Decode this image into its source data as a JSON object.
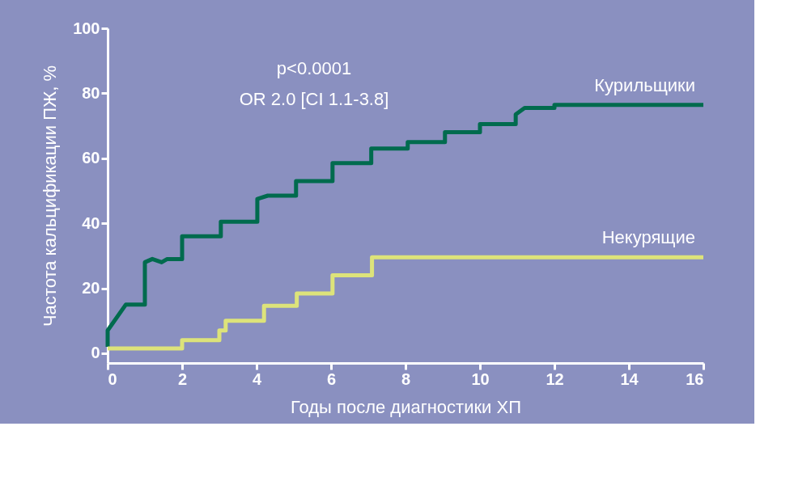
{
  "chart_data": {
    "type": "line",
    "xlabel": "Годы после диагностики ХП",
    "ylabel": "Частота кальцификации ПЖ, %",
    "annotations": [
      "p<0.0001",
      "OR 2.0 [CI 1.1-3.8]"
    ],
    "series": [
      {
        "name": "Курильщики",
        "color": "#006b4e",
        "x": [
          0,
          0,
          0.49,
          1.0,
          1.0,
          1.2,
          1.45,
          1.6,
          2.0,
          2.0,
          3.04,
          3.04,
          4.02,
          4.02,
          4.3,
          5.06,
          5.06,
          6.04,
          6.04,
          7.08,
          7.08,
          8.06,
          8.06,
          9.06,
          9.06,
          10.0,
          10.0,
          10.96,
          10.96,
          11.2,
          12.0,
          12.0,
          16
        ],
        "values": [
          2,
          7,
          15,
          15,
          28,
          29,
          28,
          29,
          29,
          36,
          36,
          40.5,
          40.5,
          47.5,
          48.5,
          48.5,
          53,
          53,
          58.5,
          58.5,
          63,
          63,
          65,
          65,
          68,
          68,
          70.5,
          70.5,
          73.5,
          75.5,
          75.5,
          76.4,
          76.4
        ]
      },
      {
        "name": "Некурящие",
        "color": "#dde37a",
        "x": [
          0,
          2.0,
          2.0,
          3.0,
          3.0,
          3.17,
          3.17,
          4.2,
          4.2,
          5.08,
          5.08,
          6.04,
          6.04,
          7.1,
          7.1,
          16
        ],
        "values": [
          1.5,
          1.5,
          4,
          4,
          7,
          7,
          10,
          10,
          14.6,
          14.6,
          18.4,
          18.4,
          24,
          24,
          29.5,
          29.5
        ]
      }
    ],
    "xlim": [
      0,
      16
    ],
    "xticks": [
      0,
      2,
      4,
      6,
      8,
      10,
      12,
      14,
      16
    ],
    "ylim": [
      -3,
      100
    ],
    "yticks": [
      0,
      20,
      40,
      60,
      80,
      100
    ],
    "grid": false,
    "legend": false,
    "line_style": "solid",
    "marker": "none"
  }
}
